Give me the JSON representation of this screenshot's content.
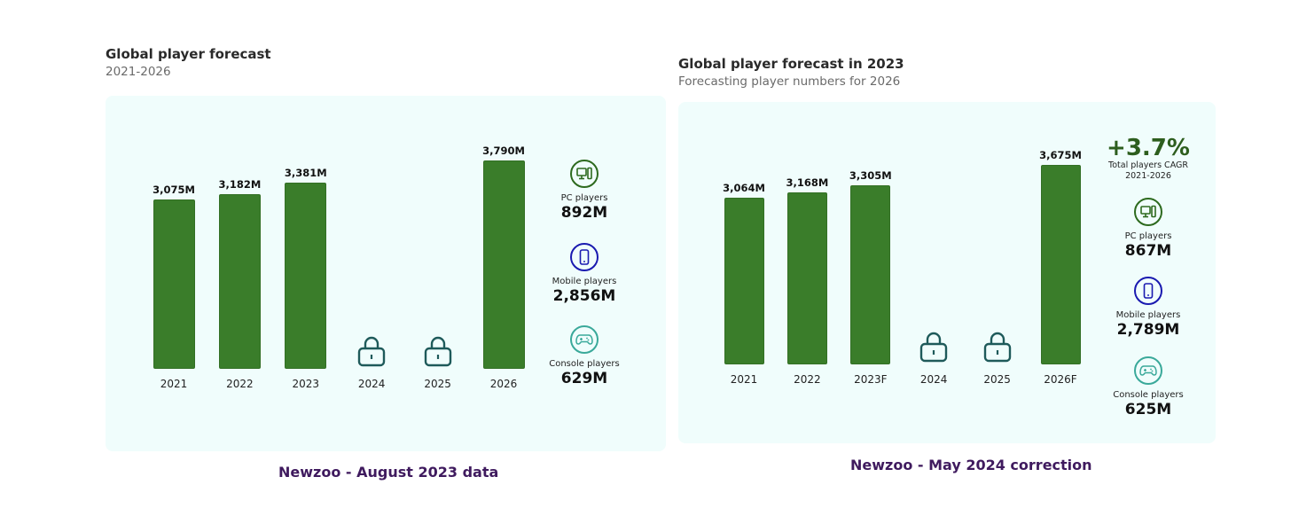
{
  "colors": {
    "bar": "#3a7d2a",
    "pc": "#2d6a1e",
    "mobile": "#1a1ab0",
    "console": "#3aa99a",
    "lock": "#1e5a5a",
    "caption": "#3f1a5e"
  },
  "left": {
    "title": "Global player forecast",
    "subtitle": "2021-2026",
    "caption": "Newzoo - August 2023 data",
    "kpis": [
      {
        "icon": "pc-icon",
        "label": "PC players",
        "value": "892M"
      },
      {
        "icon": "mobile-icon",
        "label": "Mobile players",
        "value": "2,856M"
      },
      {
        "icon": "console-icon",
        "label": "Console players",
        "value": "629M"
      }
    ]
  },
  "right": {
    "title": "Global player forecast in 2023",
    "subtitle": "Forecasting player numbers for 2026",
    "caption": "Newzoo - May 2024 correction",
    "cagr": {
      "value": "+3.7%",
      "label": "Total players CAGR",
      "range": "2021-2026"
    },
    "kpis": [
      {
        "icon": "pc-icon",
        "label": "PC players",
        "value": "867M"
      },
      {
        "icon": "mobile-icon",
        "label": "Mobile players",
        "value": "2,789M"
      },
      {
        "icon": "console-icon",
        "label": "Console players",
        "value": "625M"
      }
    ]
  },
  "chart_data": [
    {
      "type": "bar",
      "title": "Global player forecast",
      "subtitle": "2021-2026",
      "categories": [
        "2021",
        "2022",
        "2023",
        "2024",
        "2025",
        "2026"
      ],
      "values": [
        3075,
        3182,
        3381,
        null,
        null,
        3790
      ],
      "labels": [
        "3,075M",
        "3,182M",
        "3,381M",
        "",
        "",
        "3,790M"
      ],
      "locked": [
        false,
        false,
        false,
        true,
        true,
        false
      ],
      "unit": "M players",
      "xlabel": "",
      "ylabel": "",
      "grid": false
    },
    {
      "type": "bar",
      "title": "Global player forecast in 2023",
      "subtitle": "Forecasting player numbers for 2026",
      "categories": [
        "2021",
        "2022",
        "2023F",
        "2024",
        "2025",
        "2026F"
      ],
      "values": [
        3064,
        3168,
        3305,
        null,
        null,
        3675
      ],
      "labels": [
        "3,064M",
        "3,168M",
        "3,305M",
        "",
        "",
        "3,675M"
      ],
      "locked": [
        false,
        false,
        false,
        true,
        true,
        false
      ],
      "unit": "M players",
      "xlabel": "",
      "ylabel": "",
      "grid": false
    }
  ]
}
